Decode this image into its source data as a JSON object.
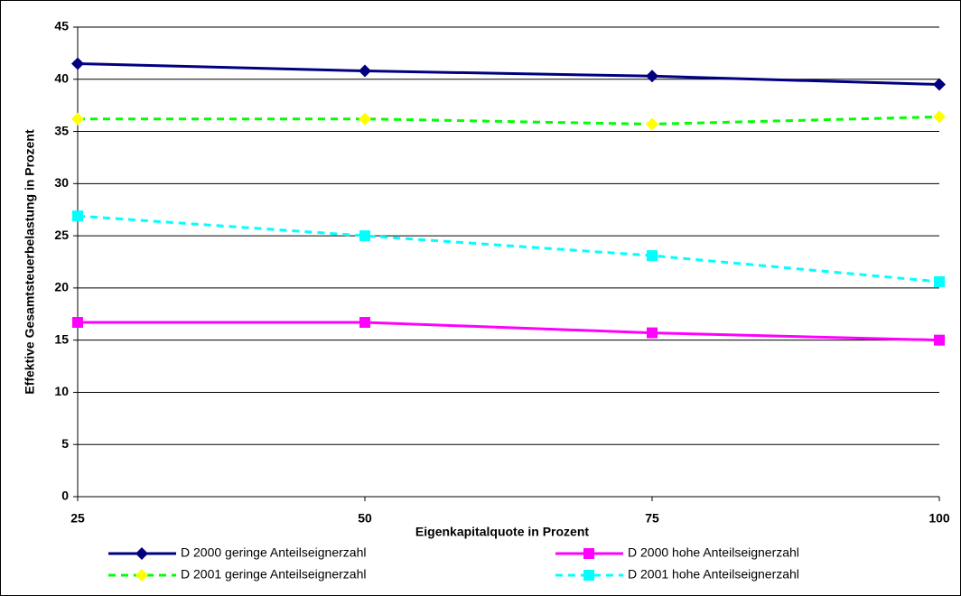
{
  "chart_data": {
    "type": "line",
    "x_label": "Eigenkapitalquote in Prozent",
    "y_label": "Effektive Gesamtsteuerbelastung in Prozent",
    "x": [
      25,
      50,
      75,
      100
    ],
    "xlim": [
      25,
      100
    ],
    "xticks": [
      25,
      50,
      75,
      100
    ],
    "ylim": [
      0,
      45
    ],
    "yticks": [
      0,
      5,
      10,
      15,
      20,
      25,
      30,
      35,
      40,
      45
    ],
    "grid": true,
    "series": [
      {
        "name": "D 2000 geringe Anteilseignerzahl",
        "color": "#000080",
        "marker": "diamond",
        "marker_color": "#000080",
        "dash": false,
        "values": [
          41.5,
          40.8,
          40.3,
          39.5
        ]
      },
      {
        "name": "D 2000 hohe Anteilseignerzahl",
        "color": "#ff00ff",
        "marker": "square",
        "marker_color": "#ff00ff",
        "dash": false,
        "values": [
          16.7,
          16.7,
          15.7,
          15.0
        ]
      },
      {
        "name": "D 2001 geringe Anteilseignerzahl",
        "color": "#00ff00",
        "marker": "diamond",
        "marker_color": "#ffff00",
        "dash": true,
        "values": [
          36.2,
          36.2,
          35.7,
          36.4
        ]
      },
      {
        "name": "D 2001 hohe Anteilseignerzahl",
        "color": "#00ffff",
        "marker": "square",
        "marker_color": "#00ffff",
        "dash": true,
        "values": [
          26.9,
          25.0,
          23.1,
          20.6
        ]
      }
    ]
  }
}
